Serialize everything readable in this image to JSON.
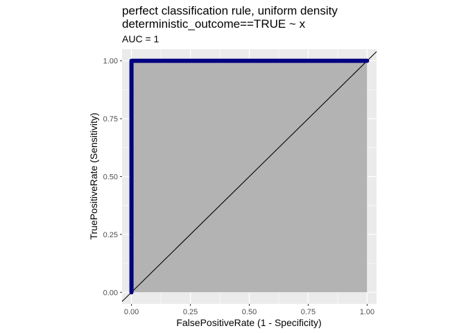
{
  "chart_data": {
    "type": "line",
    "title_line1": "perfect classification rule, uniform density",
    "title_line2": "deterministic_outcome==TRUE ~ x",
    "subtitle": "AUC = 1",
    "xlabel": "FalsePositiveRate (1 - Specificity)",
    "ylabel": "TruePositiveRate (Sensitivity)",
    "xlim": [
      -0.04,
      1.04
    ],
    "ylim": [
      -0.05,
      1.05
    ],
    "x_ticks": [
      {
        "value": 0,
        "label": "0.00"
      },
      {
        "value": 0.25,
        "label": "0.25"
      },
      {
        "value": 0.5,
        "label": "0.50"
      },
      {
        "value": 0.75,
        "label": "0.75"
      },
      {
        "value": 1,
        "label": "1.00"
      }
    ],
    "y_ticks": [
      {
        "value": 0,
        "label": "0.00"
      },
      {
        "value": 0.25,
        "label": "0.25"
      },
      {
        "value": 0.5,
        "label": "0.50"
      },
      {
        "value": 0.75,
        "label": "0.75"
      },
      {
        "value": 1,
        "label": "1.00"
      }
    ],
    "grid": true,
    "roc_curve": {
      "x": [
        0,
        0,
        1
      ],
      "y": [
        0,
        1,
        1
      ],
      "color": "#000080"
    },
    "area_under_curve": {
      "x": [
        0,
        1
      ],
      "y_top": 1,
      "fill": "#b3b3b3"
    },
    "reference_line": {
      "slope": 1,
      "intercept": 0,
      "color": "#000000"
    },
    "colors": {
      "panel_background": "#ebebeb",
      "gridline": "#ffffff"
    }
  }
}
